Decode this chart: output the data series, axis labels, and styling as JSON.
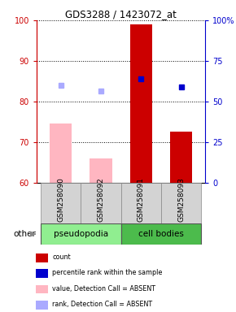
{
  "title": "GDS3288 / 1423072_at",
  "samples": [
    "GSM258090",
    "GSM258092",
    "GSM258091",
    "GSM258093"
  ],
  "bar_values": [
    74.5,
    66.0,
    99.0,
    72.5
  ],
  "bar_colors": [
    "#FFB6C1",
    "#FFB6C1",
    "#CC0000",
    "#CC0000"
  ],
  "rank_dots": [
    84.0,
    82.5,
    85.5,
    83.5
  ],
  "rank_dot_colors": [
    "#AAAAFF",
    "#AAAAFF",
    "#0000CD",
    "#0000CD"
  ],
  "ylim_left": [
    60,
    100
  ],
  "ylim_right": [
    0,
    100
  ],
  "yticks_left": [
    60,
    70,
    80,
    90,
    100
  ],
  "yticks_right": [
    0,
    25,
    50,
    75,
    100
  ],
  "ytick_labels_right": [
    "0",
    "25",
    "50",
    "75",
    "100%"
  ],
  "left_axis_color": "#CC0000",
  "right_axis_color": "#0000CD",
  "groups": [
    {
      "label": "pseudopodia",
      "start": 0,
      "end": 1,
      "color": "#90EE90"
    },
    {
      "label": "cell bodies",
      "start": 2,
      "end": 3,
      "color": "#4CBB4C"
    }
  ],
  "legend_items": [
    {
      "color": "#CC0000",
      "label": "count"
    },
    {
      "color": "#0000CD",
      "label": "percentile rank within the sample"
    },
    {
      "color": "#FFB6C1",
      "label": "value, Detection Call = ABSENT"
    },
    {
      "color": "#AAAAFF",
      "label": "rank, Detection Call = ABSENT"
    }
  ]
}
